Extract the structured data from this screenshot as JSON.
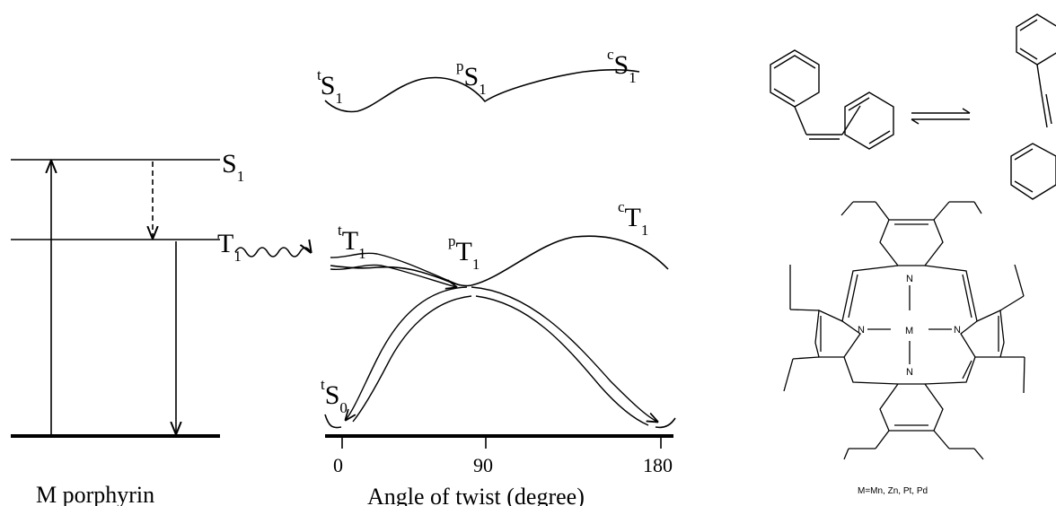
{
  "jablonski": {
    "s1_main": "S",
    "s1_sub": "1",
    "t1_main": "T",
    "t1_sub": "1",
    "caption": "M porphyrin"
  },
  "curves": {
    "tS1": {
      "sup": "t",
      "main": "S",
      "sub": "1"
    },
    "pS1": {
      "sup": "p",
      "main": "S",
      "sub": "1"
    },
    "cS1": {
      "sup": "c",
      "main": "S",
      "sub": "1"
    },
    "tT1": {
      "sup": "t",
      "main": "T",
      "sub": "1"
    },
    "pT1": {
      "sup": "p",
      "main": "T",
      "sub": "1"
    },
    "cT1": {
      "sup": "c",
      "main": "T",
      "sub": "1"
    },
    "tS0": {
      "sup": "t",
      "main": "S",
      "sub": "0"
    }
  },
  "axis": {
    "ticks": [
      "0",
      "90",
      "180"
    ],
    "title": "Angle of twist (degree)"
  },
  "porphyrin": {
    "metal": "M",
    "nitrogen": "N",
    "note": "M=Mn, Zn, Pt, Pd"
  },
  "colors": {
    "ink": "#000000",
    "background": "#ffffff"
  }
}
